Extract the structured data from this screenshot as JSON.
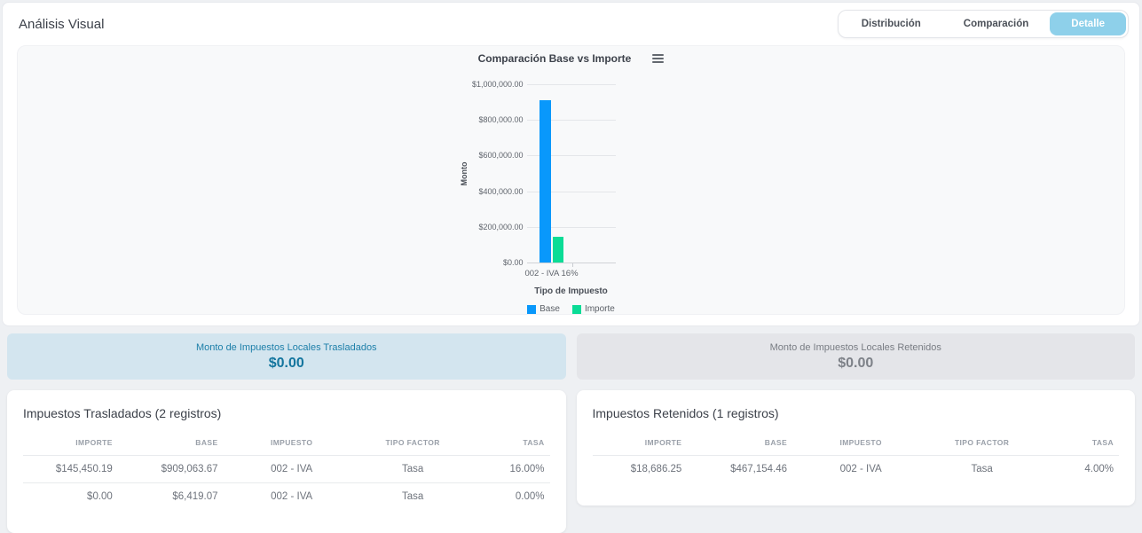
{
  "page": {
    "title": "Análisis Visual"
  },
  "tabs": [
    {
      "label": "Distribución",
      "active": false
    },
    {
      "label": "Comparación",
      "active": false
    },
    {
      "label": "Detalle",
      "active": true
    }
  ],
  "colors": {
    "tab_active_bg": "#8ed0ea",
    "base_bar": "#0998fb",
    "importe_bar": "#0bdc96",
    "stat_blue_bg": "#d3e5ef",
    "stat_gray_bg": "#e4e5e9"
  },
  "chart_data": {
    "type": "bar",
    "title": "Comparación Base vs Importe",
    "categories": [
      "002 - IVA 16%"
    ],
    "series": [
      {
        "name": "Base",
        "values": [
          909063.67
        ],
        "color": "#0998fb"
      },
      {
        "name": "Importe",
        "values": [
          145450.19
        ],
        "color": "#0bdc96"
      }
    ],
    "xlabel": "Tipo de Impuesto",
    "ylabel": "Monto",
    "ylim": [
      0,
      1000000
    ],
    "ytick_labels": [
      "$0.00",
      "$200,000.00",
      "$400,000.00",
      "$600,000.00",
      "$800,000.00",
      "$1,000,000.00"
    ],
    "grid": true,
    "legend_position": "bottom",
    "menu_icon": "hamburger-icon"
  },
  "stat_cards": [
    {
      "label": "Monto de Impuestos Locales Trasladados",
      "value": "$0.00",
      "variant": "blue"
    },
    {
      "label": "Monto de Impuestos Locales Retenidos",
      "value": "$0.00",
      "variant": "gray"
    }
  ],
  "tables": {
    "traslados": {
      "title": "Impuestos Trasladados (2 registros)",
      "columns": [
        "IMPORTE",
        "BASE",
        "IMPUESTO",
        "TIPO FACTOR",
        "TASA"
      ],
      "rows": [
        [
          "$145,450.19",
          "$909,063.67",
          "002 - IVA",
          "Tasa",
          "16.00%"
        ],
        [
          "$0.00",
          "$6,419.07",
          "002 - IVA",
          "Tasa",
          "0.00%"
        ]
      ]
    },
    "retenidos": {
      "title": "Impuestos Retenidos (1 registros)",
      "columns": [
        "IMPORTE",
        "BASE",
        "IMPUESTO",
        "TIPO FACTOR",
        "TASA"
      ],
      "rows": [
        [
          "$18,686.25",
          "$467,154.46",
          "002 - IVA",
          "Tasa",
          "4.00%"
        ]
      ]
    }
  }
}
